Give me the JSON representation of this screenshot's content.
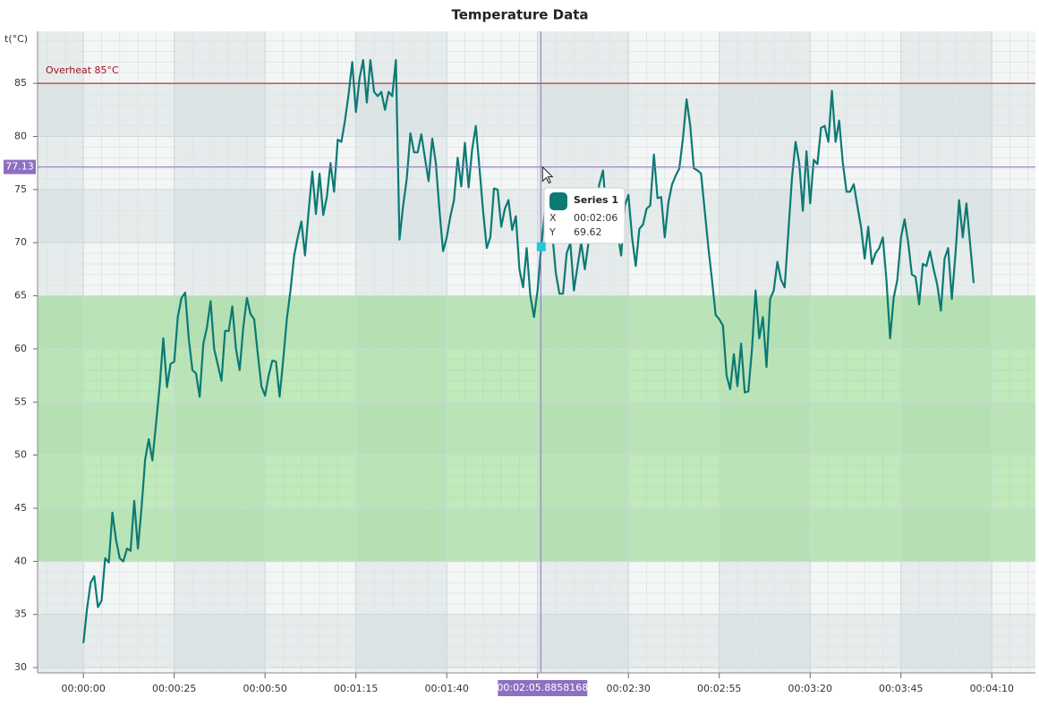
{
  "chart_data": {
    "type": "line",
    "title": "Temperature Data",
    "y_label": "t(°C)",
    "x": [
      0,
      1,
      2,
      3,
      4,
      5,
      6,
      7,
      8,
      9,
      10,
      11,
      12,
      13,
      14,
      15,
      16,
      17,
      18,
      19,
      20,
      21,
      22,
      23,
      24,
      25,
      26,
      27,
      28,
      29,
      30,
      31,
      32,
      33,
      34,
      35,
      36,
      37,
      38,
      39,
      40,
      41,
      42,
      43,
      44,
      45,
      46,
      47,
      48,
      49,
      50,
      51,
      52,
      53,
      54,
      55,
      56,
      57,
      58,
      59,
      60,
      61,
      62,
      63,
      64,
      65,
      66,
      67,
      68,
      69,
      70,
      71,
      72,
      73,
      74,
      75,
      76,
      77,
      78,
      79,
      80,
      81,
      82,
      83,
      84,
      85,
      86,
      87,
      88,
      89,
      90,
      91,
      92,
      93,
      94,
      95,
      96,
      97,
      98,
      99,
      100,
      101,
      102,
      103,
      104,
      105,
      106,
      107,
      108,
      109,
      110,
      111,
      112,
      113,
      114,
      115,
      116,
      117,
      118,
      119,
      120,
      121,
      122,
      123,
      124,
      125,
      126,
      127,
      128,
      129,
      130,
      131,
      132,
      133,
      134,
      135,
      136,
      137,
      138,
      139,
      140,
      141,
      142,
      143,
      144,
      145,
      146,
      147,
      148,
      149,
      150,
      151,
      152,
      153,
      154,
      155,
      156,
      157,
      158,
      159,
      160,
      161,
      162,
      163,
      164,
      165,
      166,
      167,
      168,
      169,
      170,
      171,
      172,
      173,
      174,
      175,
      176,
      177,
      178,
      179,
      180,
      181,
      182,
      183,
      184,
      185,
      186,
      187,
      188,
      189,
      190,
      191,
      192,
      193,
      194,
      195,
      196,
      197,
      198,
      199,
      200,
      201,
      202,
      203,
      204,
      205,
      206,
      207,
      208,
      209,
      210,
      211,
      212,
      213,
      214,
      215,
      216,
      217,
      218,
      219,
      220,
      221,
      222,
      223,
      224,
      225,
      226,
      227,
      228,
      229,
      230,
      231,
      232,
      233,
      234,
      235,
      236,
      237,
      238,
      239,
      240,
      241,
      242,
      243,
      244,
      245
    ],
    "series": [
      {
        "name": "Series 1",
        "color": "#0b7a74",
        "values": [
          32.3,
          35.5,
          38,
          38.6,
          35.7,
          36.3,
          40.3,
          39.9,
          44.6,
          42,
          40.3,
          40,
          41.2,
          41,
          45.7,
          41.2,
          45,
          49.6,
          51.5,
          49.5,
          53,
          56.5,
          61,
          56.4,
          58.6,
          58.8,
          63,
          64.8,
          65.3,
          61,
          58,
          57.7,
          55.5,
          60.5,
          62,
          64.5,
          60,
          58.5,
          57,
          61.7,
          61.7,
          64,
          60,
          58,
          62,
          64.8,
          63.3,
          62.8,
          59.5,
          56.5,
          55.6,
          57.5,
          58.9,
          58.8,
          55.5,
          59,
          62.8,
          65.5,
          68.8,
          70.5,
          72,
          68.8,
          73,
          76.7,
          72.7,
          76.5,
          72.6,
          74.3,
          77.5,
          74.8,
          79.7,
          79.5,
          81.5,
          84,
          87,
          82.3,
          85.5,
          87.2,
          83.2,
          87.2,
          84.2,
          83.8,
          84.2,
          82.5,
          84.2,
          83.8,
          87.2,
          70.3,
          73.5,
          76,
          80.3,
          78.5,
          78.5,
          80.2,
          78,
          75.8,
          79.8,
          77.5,
          73,
          69.2,
          70.5,
          72.5,
          74,
          78,
          75.3,
          79.4,
          75.2,
          78.8,
          81,
          77,
          73,
          69.5,
          70.5,
          75.1,
          75,
          71.5,
          73.2,
          74,
          71.2,
          72.5,
          67.5,
          65.8,
          69.5,
          65,
          63,
          65.5,
          69.62,
          73,
          75,
          71,
          67.2,
          65.2,
          65.2,
          69,
          70,
          65.5,
          67.8,
          70,
          67.5,
          70,
          71.5,
          73.5,
          75.5,
          76.8,
          72.5,
          71,
          71.5,
          71,
          68.8,
          73.5,
          74.5,
          70.5,
          67.8,
          71.3,
          71.7,
          73.2,
          73.5,
          78.3,
          74.2,
          74.3,
          70.5,
          73.8,
          75.5,
          76.3,
          77,
          79.8,
          83.5,
          81,
          77,
          76.8,
          76.5,
          73,
          69.5,
          66.5,
          63.2,
          62.8,
          62.2,
          57.5,
          56.2,
          59.5,
          56.5,
          60.5,
          55.9,
          56,
          60,
          65.5,
          61,
          63,
          58.3,
          64.7,
          65.5,
          68.2,
          66.5,
          65.8,
          71,
          76,
          79.5,
          77.5,
          73,
          78.6,
          73.7,
          77.8,
          77.4,
          80.8,
          81,
          79.5,
          84.3,
          79.5,
          81.5,
          77.5,
          74.8,
          74.8,
          75.5,
          73.5,
          71.5,
          68.5,
          71.5,
          68,
          69,
          69.5,
          70.5,
          66.5,
          61,
          64.8,
          66.5,
          70.5,
          72.2,
          70,
          67,
          66.8,
          64.2,
          68,
          67.8,
          69.2,
          67.5,
          66,
          63.6,
          68.5,
          69.5,
          64.7,
          69,
          74,
          70.5,
          73.7,
          70,
          66.2
        ]
      }
    ],
    "xlim": [
      -12.6,
      262
    ],
    "ylim": [
      29.5,
      89.9
    ],
    "xticks": [
      {
        "value": 0,
        "label": "00:00:00"
      },
      {
        "value": 25,
        "label": "00:00:25"
      },
      {
        "value": 50,
        "label": "00:00:50"
      },
      {
        "value": 75,
        "label": "00:01:15"
      },
      {
        "value": 100,
        "label": "00:01:40"
      },
      {
        "value": 125,
        "label": "00:02:05"
      },
      {
        "value": 150,
        "label": "00:02:30"
      },
      {
        "value": 175,
        "label": "00:02:55"
      },
      {
        "value": 200,
        "label": "00:03:20"
      },
      {
        "value": 225,
        "label": "00:03:45"
      },
      {
        "value": 250,
        "label": "00:04:10"
      }
    ],
    "yticks": [
      30,
      35,
      40,
      45,
      50,
      55,
      60,
      65,
      70,
      75,
      80,
      85
    ],
    "grid": true,
    "band": {
      "from": 40,
      "to": 65,
      "color": "rgba(150,222,140,0.55)"
    },
    "threshold": {
      "value": 85,
      "label": "Overheat 85°C",
      "color": "#a0141e"
    },
    "cursor": {
      "x": {
        "value": 125.8858168,
        "label": "00:02:05.8858168"
      },
      "y": 77.13,
      "color": "#8e6fc2"
    },
    "tooltip": {
      "index": 126,
      "series": "Series 1",
      "x_name": "X",
      "x": "00:02:06",
      "y_name": "Y",
      "y": 69.62
    }
  }
}
